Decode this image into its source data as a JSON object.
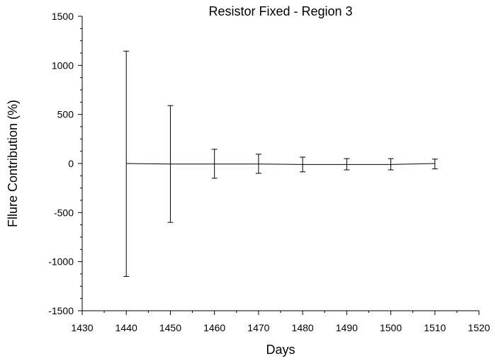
{
  "chart_data": {
    "type": "line",
    "title": "Resistor Fixed - Region 3",
    "xlabel": "Days",
    "ylabel": "Fllure Contribution (%)",
    "xlim": [
      1430,
      1520
    ],
    "ylim": [
      -1500,
      1500
    ],
    "xticks": [
      1430,
      1440,
      1450,
      1460,
      1470,
      1480,
      1490,
      1500,
      1510,
      1520
    ],
    "yticks": [
      -1500,
      -1000,
      -500,
      0,
      500,
      1000,
      1500
    ],
    "x_tick_labels": [
      "1430",
      "1440",
      "1450",
      "1460",
      "1470",
      "1480",
      "1490",
      "1500",
      "1510",
      "1520"
    ],
    "y_tick_labels": [
      "-1500",
      "-1000",
      "-500",
      "0",
      "500",
      "1000",
      "1500"
    ],
    "grid": false,
    "legend": "none",
    "line_color": "#000000",
    "series": [
      {
        "x": [
          1440,
          1450,
          1460,
          1470,
          1480,
          1490,
          1500,
          1510
        ],
        "y": [
          0,
          -5,
          -5,
          -5,
          -10,
          -10,
          -10,
          0
        ],
        "y_err_upper": [
          1145,
          590,
          145,
          95,
          65,
          50,
          50,
          45
        ],
        "y_err_lower": [
          -1150,
          -600,
          -150,
          -100,
          -85,
          -65,
          -65,
          -55
        ]
      }
    ]
  }
}
